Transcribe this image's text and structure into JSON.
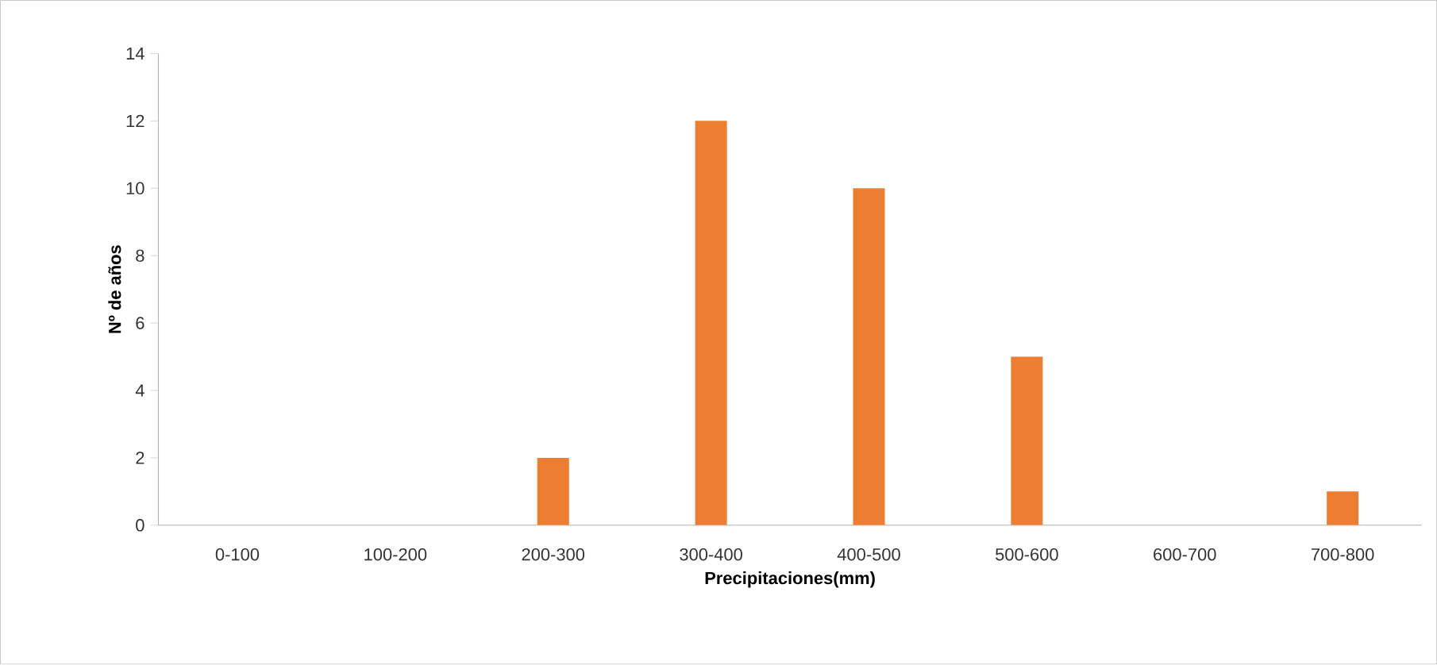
{
  "chart_data": {
    "type": "bar",
    "categories": [
      "0-100",
      "100-200",
      "200-300",
      "300-400",
      "400-500",
      "500-600",
      "600-700",
      "700-800"
    ],
    "values": [
      0,
      0,
      2,
      12,
      10,
      5,
      0,
      1
    ],
    "color": "#ed7d31",
    "xlabel": "Precipitaciones(mm)",
    "ylabel": "Nº de años",
    "ylim": [
      0,
      14
    ],
    "yticks": [
      0,
      2,
      4,
      6,
      8,
      10,
      12,
      14
    ]
  }
}
